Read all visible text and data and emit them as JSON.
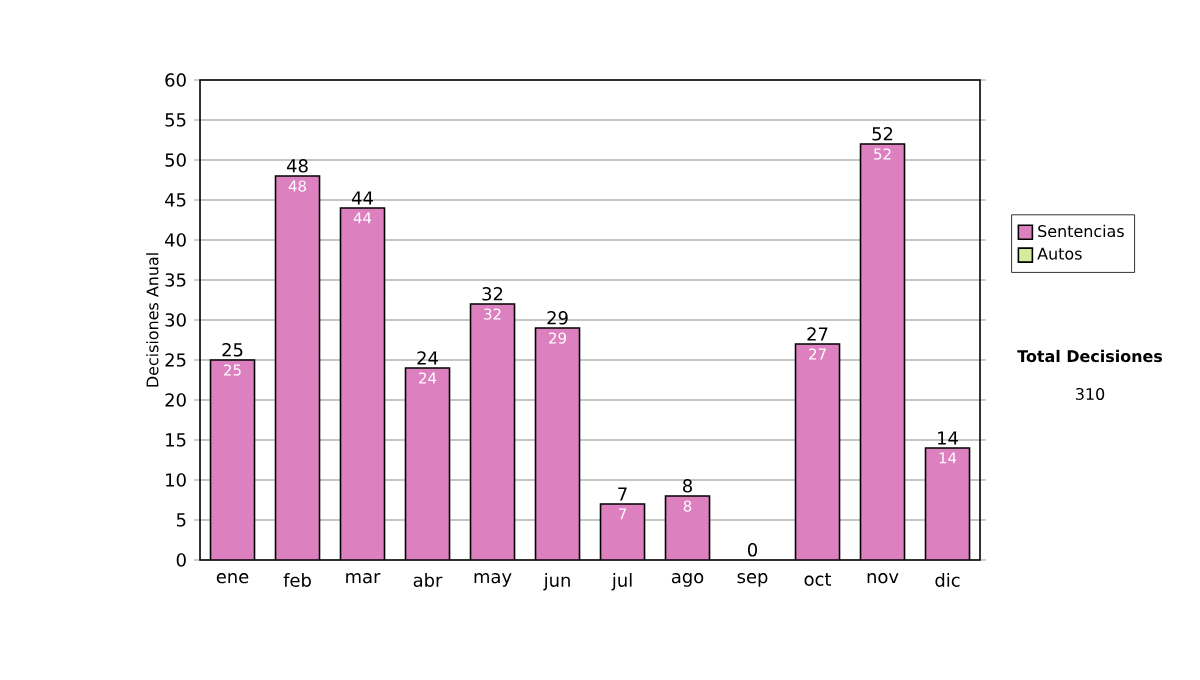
{
  "chart_data": {
    "type": "bar",
    "ylabel": "Decisiones Anual",
    "categories": [
      "ene",
      "feb",
      "mar",
      "abr",
      "may",
      "jun",
      "jul",
      "ago",
      "sep",
      "oct",
      "nov",
      "dic"
    ],
    "series": [
      {
        "name": "Sentencias",
        "color": "#dd80c0",
        "values": [
          25,
          48,
          44,
          24,
          32,
          29,
          7,
          8,
          0,
          27,
          52,
          14
        ],
        "value_labels": [
          "25",
          "48",
          "44",
          "24",
          "32",
          "29",
          "7",
          "8",
          null,
          "27",
          "52",
          "14"
        ]
      },
      {
        "name": "Autos",
        "color": "#d4ec9c",
        "values": [
          0,
          0,
          0,
          0,
          0,
          0,
          0,
          0,
          0,
          0,
          0,
          0
        ]
      }
    ],
    "stacked": true,
    "totals": [
      "25",
      "48",
      "44",
      "24",
      "32",
      "29",
      "7",
      "8",
      "0",
      "27",
      "52",
      "14"
    ],
    "ylim": [
      0,
      60
    ],
    "yticks": [
      0,
      5,
      10,
      15,
      20,
      25,
      30,
      35,
      40,
      45,
      50,
      55,
      60
    ],
    "grid": "y",
    "legend": "right",
    "annotations": [
      "Total Decisiones",
      "310"
    ]
  }
}
